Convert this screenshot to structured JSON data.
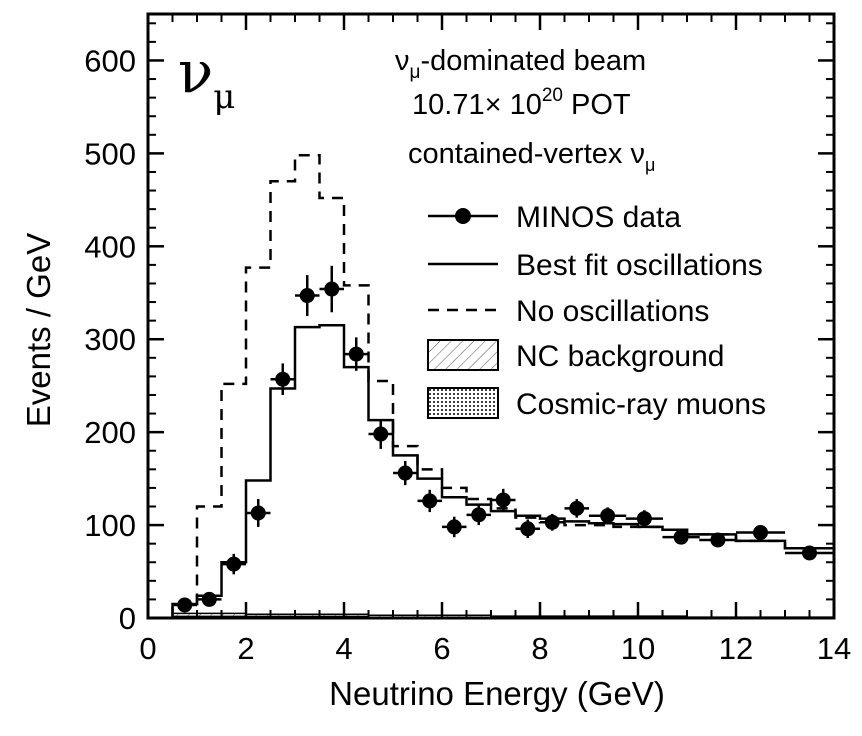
{
  "chart_data": {
    "type": "histogram",
    "xlabel": "Neutrino Energy (GeV)",
    "ylabel": "Events / GeV",
    "xlim": [
      0,
      14
    ],
    "ylim": [
      0,
      650
    ],
    "x_ticks": [
      0,
      2,
      4,
      6,
      8,
      10,
      12,
      14
    ],
    "y_ticks": [
      0,
      100,
      200,
      300,
      400,
      500,
      600
    ],
    "corner_label": {
      "nu": "ν",
      "sub": "μ"
    },
    "annotations": {
      "line1": {
        "nu": "ν",
        "sub": "μ",
        "text": "-dominated beam"
      },
      "line2": {
        "text": "10.71× 10",
        "sup": "20",
        "tail": " POT"
      },
      "line3": {
        "text": "contained-vertex ν",
        "sub": "μ"
      }
    },
    "legend": {
      "placement": "top-right",
      "entries": [
        "MINOS data",
        "Best fit oscillations",
        "No oscillations",
        "NC background",
        "Cosmic-ray muons"
      ]
    },
    "bin_edges": [
      0.5,
      1.0,
      1.5,
      2.0,
      2.5,
      3.0,
      3.5,
      4.0,
      4.5,
      5.0,
      5.5,
      6.0,
      6.5,
      7.0,
      7.5,
      8.0,
      8.5,
      9.0,
      9.5,
      10.0,
      10.5,
      11.0,
      12.0,
      13.0,
      14.0
    ],
    "series": [
      {
        "name": "No oscillations",
        "style": "dashed",
        "values": [
          15,
          120,
          252,
          377,
          470,
          498,
          452,
          358,
          255,
          185,
          160,
          140,
          128,
          118,
          108,
          103,
          100,
          100,
          98,
          98,
          95,
          90,
          83,
          75
        ]
      },
      {
        "name": "Best fit oscillations",
        "style": "solid",
        "values": [
          15,
          24,
          60,
          148,
          247,
          313,
          315,
          270,
          213,
          175,
          150,
          130,
          122,
          115,
          110,
          107,
          104,
          102,
          101,
          98,
          95,
          90,
          83,
          75
        ]
      },
      {
        "name": "NC background",
        "style": "hatched",
        "values": [
          5,
          5,
          5,
          4,
          4,
          4,
          4,
          4,
          3,
          3,
          3,
          3,
          3,
          2,
          2,
          2,
          2,
          2,
          2,
          2,
          2,
          1,
          1,
          1
        ]
      },
      {
        "name": "Cosmic-ray muons",
        "style": "dotted-fill",
        "values": [
          2,
          2,
          2,
          2,
          2,
          2,
          2,
          2,
          1,
          1,
          1,
          1,
          1,
          1,
          1,
          1,
          1,
          1,
          1,
          1,
          1,
          1,
          1,
          1
        ]
      }
    ],
    "data_points": {
      "name": "MINOS data",
      "x": [
        0.75,
        1.25,
        1.75,
        2.25,
        2.75,
        3.25,
        3.75,
        4.25,
        4.75,
        5.25,
        5.75,
        6.25,
        6.75,
        7.25,
        7.75,
        8.25,
        8.75,
        9.38,
        10.13,
        10.88,
        11.63,
        12.5,
        13.5
      ],
      "y": [
        14,
        20,
        58,
        113,
        257,
        347,
        354,
        284,
        198,
        156,
        126,
        98,
        111,
        127,
        96,
        103,
        118,
        110,
        107,
        87,
        84,
        92,
        70
      ],
      "yerr": [
        6,
        7,
        11,
        15,
        17,
        22,
        25,
        18,
        16,
        13,
        12,
        11,
        11,
        12,
        10,
        9,
        10,
        9,
        9,
        7,
        7,
        7,
        5
      ],
      "xerr": [
        0.25,
        0.25,
        0.25,
        0.25,
        0.25,
        0.25,
        0.25,
        0.25,
        0.25,
        0.25,
        0.25,
        0.25,
        0.25,
        0.25,
        0.25,
        0.25,
        0.25,
        0.38,
        0.38,
        0.38,
        0.38,
        0.5,
        0.5
      ]
    }
  }
}
